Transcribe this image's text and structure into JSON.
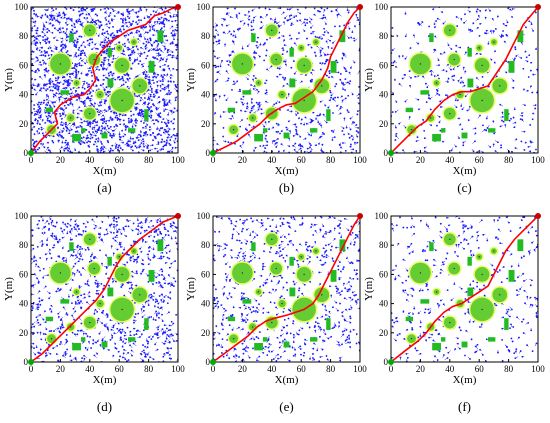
{
  "figure": {
    "panel_labels": [
      "(a)",
      "(b)",
      "(c)",
      "(d)",
      "(e)",
      "(f)"
    ]
  },
  "colors": {
    "tree": "#1a1aff",
    "path": "#ff0000",
    "obstacle_circle": "#66cc33",
    "obstacle_rect": "#22bb22",
    "obstacle_ring": "#e8ff66",
    "start": "#00aa00",
    "goal": "#cc0000"
  },
  "chart_data": [
    {
      "type": "scatter",
      "panel": "(a)",
      "xlabel": "X(m)",
      "ylabel": "Y(m)",
      "xlim": [
        0,
        100
      ],
      "ylim": [
        0,
        100
      ],
      "xticks": [
        0,
        20,
        40,
        60,
        80,
        100
      ],
      "yticks": [
        0,
        20,
        40,
        60,
        80,
        100
      ],
      "start": [
        0,
        0
      ],
      "goal": [
        100,
        100
      ],
      "tree_density": "dense",
      "path": [
        [
          0,
          0
        ],
        [
          6,
          8
        ],
        [
          12,
          14
        ],
        [
          18,
          20
        ],
        [
          16,
          28
        ],
        [
          20,
          33
        ],
        [
          28,
          38
        ],
        [
          36,
          40
        ],
        [
          40,
          44
        ],
        [
          44,
          50
        ],
        [
          42,
          58
        ],
        [
          45,
          66
        ],
        [
          50,
          72
        ],
        [
          54,
          76
        ],
        [
          60,
          80
        ],
        [
          66,
          84
        ],
        [
          72,
          86
        ],
        [
          78,
          88
        ],
        [
          84,
          94
        ],
        [
          90,
          96
        ],
        [
          96,
          99
        ],
        [
          100,
          100
        ]
      ]
    },
    {
      "type": "scatter",
      "panel": "(b)",
      "xlabel": "X(m)",
      "ylabel": "Y(m)",
      "xlim": [
        0,
        100
      ],
      "ylim": [
        0,
        100
      ],
      "xticks": [
        0,
        20,
        40,
        60,
        80,
        100
      ],
      "yticks": [
        0,
        20,
        40,
        60,
        80,
        100
      ],
      "start": [
        0,
        0
      ],
      "goal": [
        100,
        100
      ],
      "tree_density": "medium",
      "path": [
        [
          0,
          0
        ],
        [
          8,
          4
        ],
        [
          16,
          8
        ],
        [
          24,
          14
        ],
        [
          32,
          20
        ],
        [
          38,
          26
        ],
        [
          44,
          30
        ],
        [
          50,
          33
        ],
        [
          56,
          34
        ],
        [
          62,
          38
        ],
        [
          68,
          42
        ],
        [
          74,
          50
        ],
        [
          78,
          58
        ],
        [
          80,
          66
        ],
        [
          84,
          74
        ],
        [
          88,
          82
        ],
        [
          92,
          90
        ],
        [
          96,
          96
        ],
        [
          100,
          100
        ]
      ]
    },
    {
      "type": "scatter",
      "panel": "(c)",
      "xlabel": "X(m)",
      "ylabel": "Y(m)",
      "xlim": [
        0,
        100
      ],
      "ylim": [
        0,
        100
      ],
      "xticks": [
        0,
        20,
        40,
        60,
        80,
        100
      ],
      "yticks": [
        0,
        20,
        40,
        60,
        80,
        100
      ],
      "start": [
        0,
        0
      ],
      "goal": [
        100,
        100
      ],
      "tree_density": "sparse",
      "path": [
        [
          0,
          0
        ],
        [
          6,
          6
        ],
        [
          12,
          12
        ],
        [
          18,
          18
        ],
        [
          24,
          22
        ],
        [
          30,
          30
        ],
        [
          36,
          36
        ],
        [
          42,
          40
        ],
        [
          48,
          42
        ],
        [
          54,
          42
        ],
        [
          60,
          44
        ],
        [
          66,
          46
        ],
        [
          70,
          52
        ],
        [
          74,
          58
        ],
        [
          78,
          64
        ],
        [
          82,
          72
        ],
        [
          86,
          80
        ],
        [
          90,
          88
        ],
        [
          95,
          94
        ],
        [
          100,
          100
        ]
      ]
    },
    {
      "type": "scatter",
      "panel": "(d)",
      "xlabel": "X(m)",
      "ylabel": "Y(m)",
      "xlim": [
        0,
        100
      ],
      "ylim": [
        0,
        100
      ],
      "xticks": [
        0,
        20,
        40,
        60,
        80,
        100
      ],
      "yticks": [
        0,
        20,
        40,
        60,
        80,
        100
      ],
      "start": [
        0,
        0
      ],
      "goal": [
        100,
        100
      ],
      "tree_density": "medium-dense",
      "path": [
        [
          0,
          0
        ],
        [
          8,
          6
        ],
        [
          14,
          12
        ],
        [
          20,
          18
        ],
        [
          26,
          24
        ],
        [
          32,
          30
        ],
        [
          38,
          36
        ],
        [
          44,
          42
        ],
        [
          50,
          50
        ],
        [
          54,
          58
        ],
        [
          58,
          66
        ],
        [
          62,
          72
        ],
        [
          68,
          78
        ],
        [
          74,
          84
        ],
        [
          82,
          90
        ],
        [
          90,
          96
        ],
        [
          100,
          100
        ]
      ]
    },
    {
      "type": "scatter",
      "panel": "(e)",
      "xlabel": "X(m)",
      "ylabel": "Y(m)",
      "xlim": [
        0,
        100
      ],
      "ylim": [
        0,
        100
      ],
      "xticks": [
        0,
        20,
        40,
        60,
        80,
        100
      ],
      "yticks": [
        0,
        20,
        40,
        60,
        80,
        100
      ],
      "start": [
        0,
        0
      ],
      "goal": [
        100,
        100
      ],
      "tree_density": "medium",
      "path": [
        [
          0,
          0
        ],
        [
          8,
          6
        ],
        [
          16,
          12
        ],
        [
          24,
          18
        ],
        [
          30,
          24
        ],
        [
          36,
          28
        ],
        [
          42,
          30
        ],
        [
          50,
          32
        ],
        [
          56,
          34
        ],
        [
          62,
          36
        ],
        [
          68,
          40
        ],
        [
          72,
          46
        ],
        [
          76,
          54
        ],
        [
          80,
          62
        ],
        [
          84,
          70
        ],
        [
          88,
          78
        ],
        [
          92,
          86
        ],
        [
          96,
          94
        ],
        [
          100,
          100
        ]
      ]
    },
    {
      "type": "scatter",
      "panel": "(f)",
      "xlabel": "X(m)",
      "ylabel": "Y(m)",
      "xlim": [
        0,
        100
      ],
      "ylim": [
        0,
        100
      ],
      "xticks": [
        0,
        20,
        40,
        60,
        80,
        100
      ],
      "yticks": [
        0,
        20,
        40,
        60,
        80,
        100
      ],
      "start": [
        0,
        0
      ],
      "goal": [
        100,
        100
      ],
      "tree_density": "sparse",
      "path": [
        [
          0,
          0
        ],
        [
          10,
          8
        ],
        [
          18,
          14
        ],
        [
          24,
          20
        ],
        [
          30,
          28
        ],
        [
          36,
          34
        ],
        [
          42,
          38
        ],
        [
          48,
          40
        ],
        [
          54,
          44
        ],
        [
          60,
          48
        ],
        [
          66,
          52
        ],
        [
          70,
          60
        ],
        [
          74,
          68
        ],
        [
          78,
          76
        ],
        [
          84,
          84
        ],
        [
          90,
          90
        ],
        [
          96,
          96
        ],
        [
          100,
          100
        ]
      ]
    }
  ],
  "obstacles": {
    "circles": [
      {
        "x": 20,
        "y": 61,
        "r": 7
      },
      {
        "x": 40,
        "y": 84,
        "r": 4
      },
      {
        "x": 43,
        "y": 64,
        "r": 4
      },
      {
        "x": 62,
        "y": 60,
        "r": 5
      },
      {
        "x": 74,
        "y": 46,
        "r": 5
      },
      {
        "x": 62,
        "y": 36,
        "r": 8
      },
      {
        "x": 40,
        "y": 27,
        "r": 4
      },
      {
        "x": 14,
        "y": 16,
        "r": 3
      },
      {
        "x": 27,
        "y": 24,
        "r": 2.5
      },
      {
        "x": 47,
        "y": 40,
        "r": 2.5
      },
      {
        "x": 31,
        "y": 48,
        "r": 2
      },
      {
        "x": 60,
        "y": 72,
        "r": 2
      },
      {
        "x": 70,
        "y": 76,
        "r": 2
      }
    ],
    "rects": [
      {
        "x": 26,
        "y": 76,
        "w": 3,
        "h": 6
      },
      {
        "x": 52,
        "y": 66,
        "w": 3,
        "h": 6
      },
      {
        "x": 86,
        "y": 76,
        "w": 4,
        "h": 8
      },
      {
        "x": 80,
        "y": 55,
        "w": 4,
        "h": 8
      },
      {
        "x": 77,
        "y": 22,
        "w": 3,
        "h": 8
      },
      {
        "x": 52,
        "y": 45,
        "w": 4,
        "h": 6
      },
      {
        "x": 20,
        "y": 40,
        "w": 6,
        "h": 3
      },
      {
        "x": 10,
        "y": 28,
        "w": 5,
        "h": 3
      },
      {
        "x": 28,
        "y": 8,
        "w": 6,
        "h": 5
      },
      {
        "x": 66,
        "y": 14,
        "w": 5,
        "h": 3
      },
      {
        "x": 48,
        "y": 10,
        "w": 4,
        "h": 4
      },
      {
        "x": 34,
        "y": 14,
        "w": 3,
        "h": 3
      }
    ]
  }
}
